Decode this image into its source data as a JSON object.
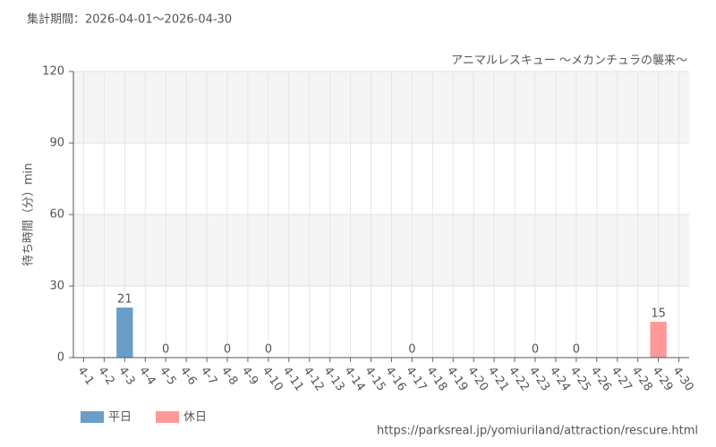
{
  "chart_data": {
    "type": "bar",
    "title": "集計期間：2026-04-01～2026-04-30",
    "subtitle": "アニマルレスキュー ～メカンチュラの襲来～",
    "y_label": "待ち時間（分）min",
    "source": "https://parksreal.jp/yomiuriland/attraction/rescure.html",
    "categories": [
      "4-1",
      "4-2",
      "4-3",
      "4-4",
      "4-5",
      "4-6",
      "4-7",
      "4-8",
      "4-9",
      "4-10",
      "4-11",
      "4-12",
      "4-13",
      "4-14",
      "4-15",
      "4-16",
      "4-17",
      "4-18",
      "4-19",
      "4-20",
      "4-21",
      "4-22",
      "4-23",
      "4-24",
      "4-25",
      "4-26",
      "4-27",
      "4-28",
      "4-29",
      "4-30"
    ],
    "category_colors": [
      "#555",
      "#555",
      "#555",
      "#f08080",
      "#f08080",
      "#555",
      "#555",
      "#555",
      "#555",
      "#555",
      "#f08080",
      "#f08080",
      "#555",
      "#555",
      "#555",
      "#555",
      "#555",
      "#f08080",
      "#f08080",
      "#555",
      "#555",
      "#555",
      "#555",
      "#555",
      "#f08080",
      "#f08080",
      "#555",
      "#555",
      "#f08080",
      "#555"
    ],
    "series": [
      {
        "name": "平日",
        "color": "#6a9ec6",
        "values": [
          null,
          null,
          21,
          null,
          null,
          null,
          null,
          0,
          null,
          0,
          null,
          null,
          null,
          null,
          null,
          null,
          0,
          null,
          null,
          null,
          null,
          null,
          0,
          null,
          null,
          null,
          null,
          null,
          null,
          null
        ]
      },
      {
        "name": "休日",
        "color": "#ff9898",
        "values": [
          null,
          null,
          null,
          null,
          0,
          null,
          null,
          null,
          null,
          null,
          null,
          null,
          null,
          null,
          null,
          null,
          null,
          null,
          null,
          null,
          null,
          null,
          null,
          null,
          0,
          null,
          null,
          null,
          15,
          null
        ]
      }
    ],
    "ylim": [
      0,
      120
    ],
    "yticks": [
      0,
      30,
      60,
      90,
      120
    ],
    "grid": true
  }
}
